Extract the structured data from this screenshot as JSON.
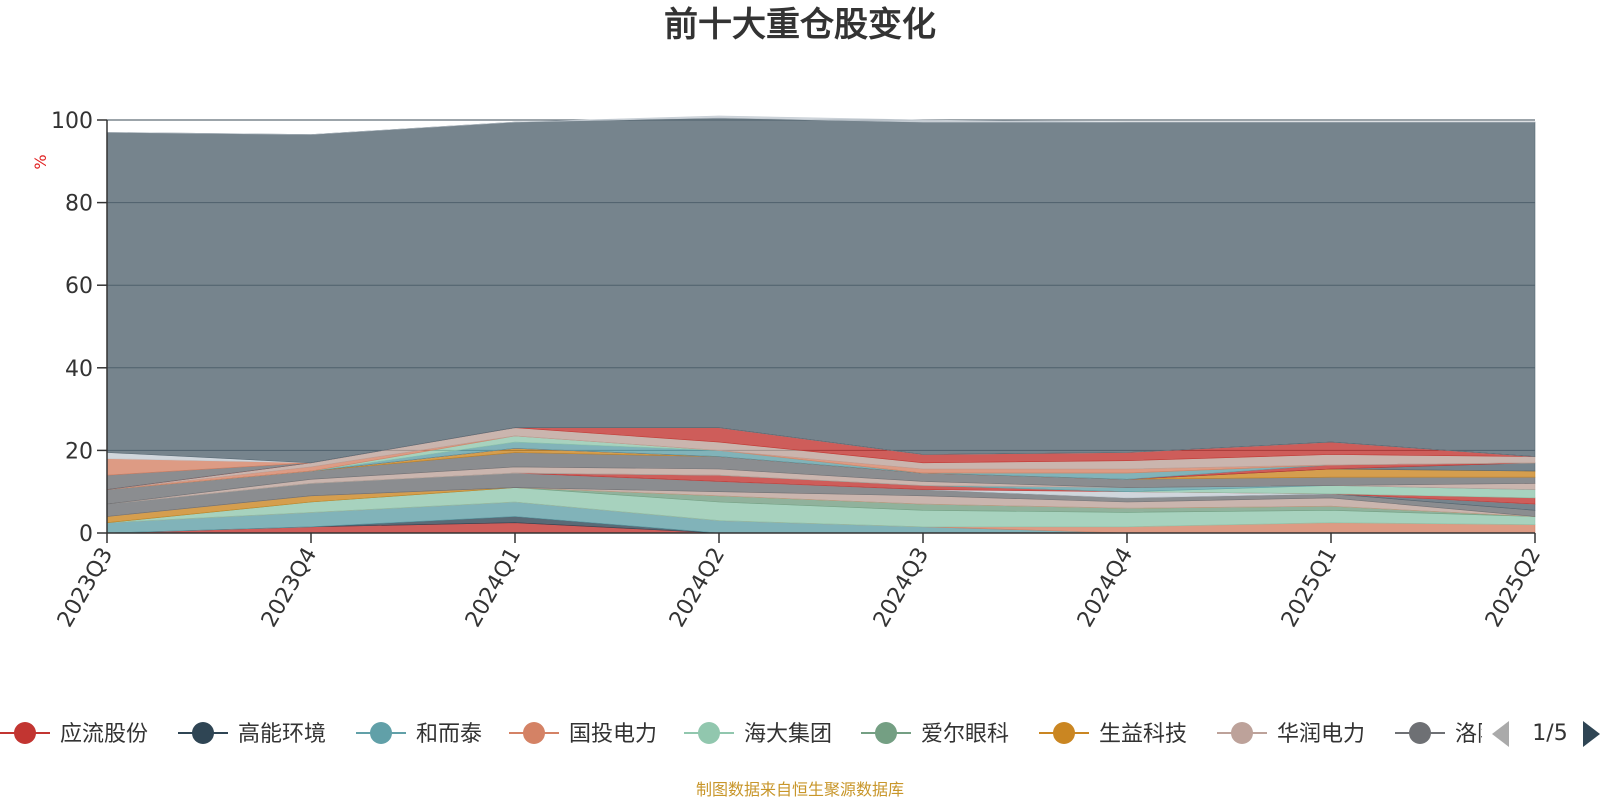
{
  "chart_data": {
    "type": "area",
    "stacked": true,
    "title": "前十大重仓股变化",
    "ylabel": "%",
    "ylim": [
      0,
      100
    ],
    "yticks": [
      0,
      20,
      40,
      60,
      80,
      100
    ],
    "grid": true,
    "categories": [
      "2023Q3",
      "2023Q4",
      "2024Q1",
      "2024Q2",
      "2024Q3",
      "2024Q4",
      "2025Q1",
      "2025Q2"
    ],
    "series": [
      {
        "name": "应流股份",
        "color": "#c23531",
        "values": [
          0,
          1.5,
          2.5,
          0,
          0,
          0,
          0,
          0
        ]
      },
      {
        "name": "高能环境",
        "color": "#2f4554",
        "values": [
          0,
          0,
          1.5,
          0,
          0,
          0,
          0,
          0
        ]
      },
      {
        "name": "和而泰",
        "color": "#61a0a8",
        "values": [
          2.5,
          3.5,
          3.5,
          3,
          1.5,
          0,
          0,
          0
        ]
      },
      {
        "name": "国投电力",
        "color": "#d48265",
        "values": [
          0,
          0,
          0,
          0,
          0,
          1.5,
          2.5,
          2
        ]
      },
      {
        "name": "海大集团",
        "color": "#91c7ae",
        "values": [
          0,
          2.5,
          3.5,
          4.5,
          4,
          3.5,
          3,
          2
        ]
      },
      {
        "name": "爱尔眼科",
        "color": "#749f83",
        "values": [
          0,
          0,
          0,
          1.5,
          1.5,
          1,
          1,
          0
        ]
      },
      {
        "name": "生益科技",
        "color": "#ca8622",
        "values": [
          1.5,
          1.5,
          0,
          0,
          0,
          0,
          0,
          0
        ]
      },
      {
        "name": "华润电力",
        "color": "#bda29a",
        "values": [
          0,
          0,
          0,
          1,
          2,
          1.5,
          2,
          0
        ]
      },
      {
        "name": "洛阳钼业",
        "color": "#6e7074",
        "values": [
          3,
          3,
          3.5,
          2.5,
          1.5,
          1,
          1,
          1.5
        ]
      },
      {
        "name": "",
        "color": "#546570",
        "values": [
          0,
          0,
          0,
          0,
          0,
          0,
          0,
          1.5
        ]
      },
      {
        "name": "",
        "color": "#c4ccd3",
        "values": [
          0,
          0,
          0,
          0,
          0,
          1.5,
          0,
          0
        ]
      },
      {
        "name": "",
        "color": "#c23531",
        "values": [
          0,
          0,
          0,
          1.5,
          1,
          0,
          0,
          1.5
        ]
      },
      {
        "name": "",
        "color": "#91c7ae",
        "values": [
          0,
          0,
          0,
          0,
          0,
          0,
          2,
          2
        ]
      },
      {
        "name": "",
        "color": "#61a0a8",
        "values": [
          0,
          0,
          0,
          0,
          0,
          1,
          0,
          0
        ]
      },
      {
        "name": "",
        "color": "#bda29a",
        "values": [
          0,
          1,
          1.5,
          1.5,
          1,
          0,
          0,
          1.5
        ]
      },
      {
        "name": "",
        "color": "#6e7074",
        "values": [
          3.5,
          2,
          3.5,
          3,
          2,
          2,
          2,
          1.5
        ]
      },
      {
        "name": "",
        "color": "#ca8622",
        "values": [
          0,
          0,
          1,
          0,
          0,
          0,
          2,
          1.5
        ]
      },
      {
        "name": "",
        "color": "#546570",
        "values": [
          0,
          0,
          0,
          0,
          0,
          0,
          0,
          2
        ]
      },
      {
        "name": "",
        "color": "#c23531",
        "values": [
          0,
          0,
          0,
          0,
          0,
          0,
          1,
          0
        ]
      },
      {
        "name": "",
        "color": "#61a0a8",
        "values": [
          0,
          0,
          1.5,
          1.5,
          0,
          1.5,
          0,
          0
        ]
      },
      {
        "name": "",
        "color": "#91c7ae",
        "values": [
          0,
          0,
          1.5,
          0,
          0,
          0,
          0,
          0
        ]
      },
      {
        "name": "",
        "color": "#d48265",
        "values": [
          0,
          1,
          0,
          0,
          1,
          1,
          0,
          0
        ]
      },
      {
        "name": "",
        "color": "#bda29a",
        "values": [
          0,
          1,
          2,
          2,
          1.5,
          2,
          2.5,
          1.5
        ]
      },
      {
        "name": "",
        "color": "#c23531",
        "values": [
          0,
          0,
          0,
          3.5,
          2,
          2,
          3,
          0
        ]
      },
      {
        "name": "",
        "color": "#6e7074",
        "values": [
          3.5,
          0,
          0,
          0,
          0,
          0,
          0,
          0
        ]
      },
      {
        "name": "",
        "color": "#d48265",
        "values": [
          4,
          0,
          0,
          0,
          0,
          0,
          0,
          0
        ]
      },
      {
        "name": "",
        "color": "#c4ccd3",
        "values": [
          1.5,
          0,
          0,
          0,
          0,
          0,
          0,
          0
        ]
      },
      {
        "name": "",
        "color": "#546570",
        "values": [
          77.5,
          79.5,
          74,
          75,
          80.5,
          80,
          77.5,
          81
        ]
      },
      {
        "name": "",
        "color": "#c4ccd3",
        "values": [
          0,
          0,
          0,
          0.5,
          0.5,
          0,
          0,
          0
        ]
      }
    ]
  },
  "legend": {
    "items": [
      {
        "name": "应流股份",
        "color": "#c23531"
      },
      {
        "name": "高能环境",
        "color": "#2f4554"
      },
      {
        "name": "和而泰",
        "color": "#61a0a8"
      },
      {
        "name": "国投电力",
        "color": "#d48265"
      },
      {
        "name": "海大集团",
        "color": "#91c7ae"
      },
      {
        "name": "爱尔眼科",
        "color": "#749f83"
      },
      {
        "name": "生益科技",
        "color": "#ca8622"
      },
      {
        "name": "华润电力",
        "color": "#bda29a"
      },
      {
        "name": "洛阳钼业",
        "color": "#6e7074"
      }
    ],
    "page": "1/5",
    "prev_icon": "triangle-left-icon",
    "next_icon": "triangle-right-icon"
  },
  "source": "制图数据来自恒生聚源数据库"
}
